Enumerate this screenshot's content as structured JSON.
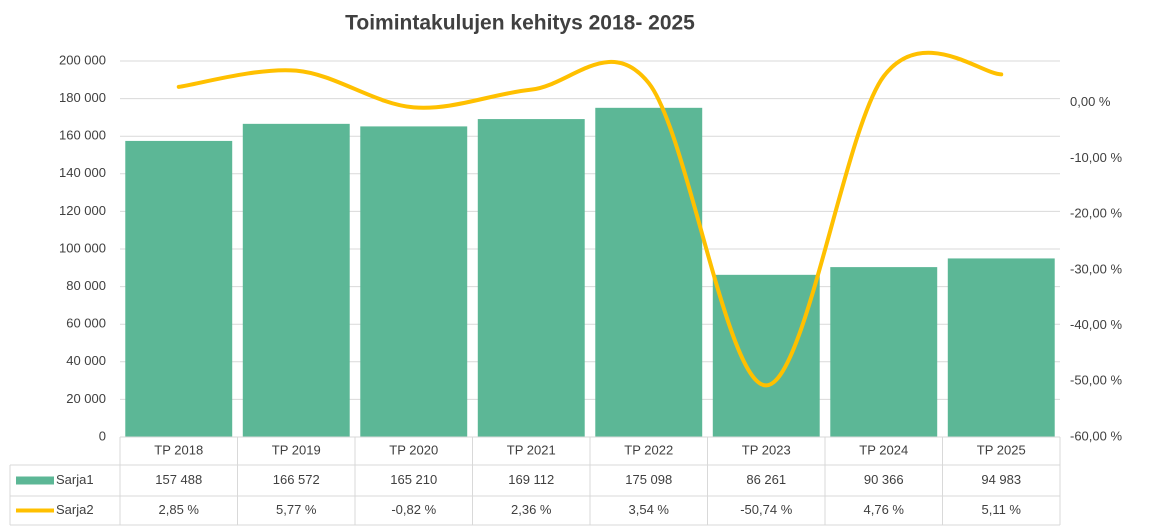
{
  "chart_data": {
    "type": "bar",
    "title": "Toimintakulujen kehitys 2018- 2025",
    "categories": [
      "TP 2018",
      "TP 2019",
      "TP 2020",
      "TP 2021",
      "TP 2022",
      "TP 2023",
      "TP 2024",
      "TP 2025"
    ],
    "series": [
      {
        "name": "Sarja1",
        "color": "#5cb796",
        "type": "bar",
        "values": [
          157488,
          166572,
          165210,
          169112,
          175098,
          86261,
          90366,
          94983
        ],
        "value_labels": [
          "157 488",
          "166 572",
          "165 210",
          "169 112",
          "175 098",
          "86 261",
          "90 366",
          "94 983"
        ]
      },
      {
        "name": "Sarja2",
        "color": "#ffc000",
        "type": "line",
        "axis": "y2",
        "smooth": true,
        "values": [
          2.85,
          5.77,
          -0.82,
          2.36,
          3.54,
          -50.74,
          4.76,
          5.11
        ],
        "value_labels": [
          "2,85 %",
          "5,77 %",
          "-0,82 %",
          "2,36 %",
          "3,54 %",
          "-50,74 %",
          "4,76 %",
          "5,11 %"
        ]
      }
    ],
    "ylim": [
      0,
      200000
    ],
    "yticks": [
      0,
      {
        "value": 20000,
        "label": "20 000"
      },
      {
        "value": 40000,
        "label": "40 000"
      },
      {
        "value": 60000,
        "label": "60 000"
      },
      {
        "value": 80000,
        "label": "80 000"
      },
      {
        "value": 100000,
        "label": "100 000"
      },
      {
        "value": 120000,
        "label": "120 000"
      },
      {
        "value": 140000,
        "label": "140 000"
      },
      {
        "value": 160000,
        "label": "160 000"
      },
      {
        "value": 180000,
        "label": "180 000"
      },
      {
        "value": 200000,
        "label": "200 000"
      }
    ],
    "y2lim": [
      -60,
      7.5
    ],
    "y2ticks": [
      {
        "value": -60,
        "label": "-60,00 %"
      },
      {
        "value": -50,
        "label": "-50,00 %"
      },
      {
        "value": -40,
        "label": "-40,00 %"
      },
      {
        "value": -30,
        "label": "-30,00 %"
      },
      {
        "value": -20,
        "label": "-20,00 %"
      },
      {
        "value": -10,
        "label": "-10,00 %"
      },
      {
        "value": 0,
        "label": "0,00 %"
      }
    ],
    "grid": true,
    "data_table": true
  }
}
